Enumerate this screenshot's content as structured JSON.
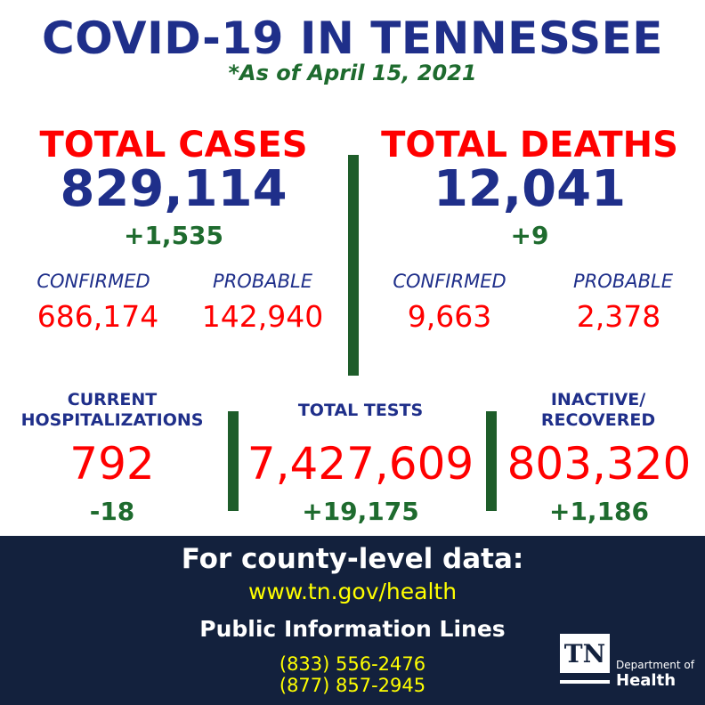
{
  "header": {
    "title": "COVID-19 IN TENNESSEE",
    "as_of": "*As of April 15, 2021"
  },
  "cases": {
    "label": "TOTAL CASES",
    "total": "829,114",
    "delta": "+1,535",
    "confirmed_label": "CONFIRMED",
    "confirmed": "686,174",
    "probable_label": "PROBABLE",
    "probable": "142,940"
  },
  "deaths": {
    "label": "TOTAL DEATHS",
    "total": "12,041",
    "delta": "+9",
    "confirmed_label": "CONFIRMED",
    "confirmed": "9,663",
    "probable_label": "PROBABLE",
    "probable": "2,378"
  },
  "hospitalizations": {
    "label_line1": "CURRENT",
    "label_line2": "HOSPITALIZATIONS",
    "value": "792",
    "delta": "-18"
  },
  "tests": {
    "label": "TOTAL TESTS",
    "value": "7,427,609",
    "delta": "+19,175"
  },
  "recovered": {
    "label_line1": "INACTIVE/",
    "label_line2": "RECOVERED",
    "value": "803,320",
    "delta": "+1,186"
  },
  "footer": {
    "county_heading": "For county-level data:",
    "url": "www.tn.gov/health",
    "lines_heading": "Public Information Lines",
    "phone1": "(833) 556-2476",
    "phone2": "(877) 857-2945"
  },
  "logo": {
    "mark": "TN",
    "dept": "Department of",
    "health": "Health"
  },
  "colors": {
    "navy": "#1f2f8a",
    "red": "#ff0000",
    "green": "#1e6b2e",
    "footer_bg": "#13213d",
    "yellow": "#ffff00"
  }
}
